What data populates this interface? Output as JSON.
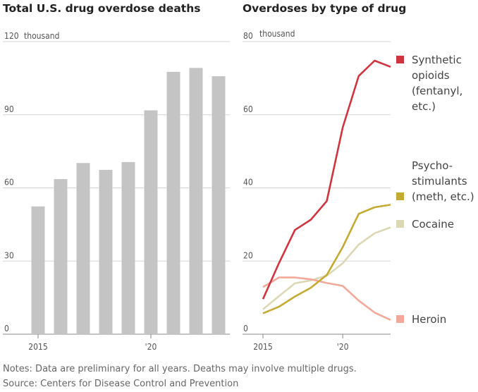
{
  "chart_data": [
    {
      "type": "bar",
      "title": "Total U.S. drug overdose deaths",
      "unit_label": "thousand",
      "x": [
        2015,
        2016,
        2017,
        2018,
        2019,
        2020,
        2021,
        2022,
        2023
      ],
      "values": [
        52.4,
        63.6,
        70.2,
        67.4,
        70.6,
        91.8,
        107.6,
        109.2,
        105.8
      ],
      "ylim": [
        0,
        120
      ],
      "y_ticks": [
        "120",
        "90",
        "60",
        "30",
        "0"
      ],
      "x_ticks": [
        "2015",
        "'20"
      ],
      "colors": {
        "bar": "#c4c4c4"
      },
      "grid": true
    },
    {
      "type": "line",
      "title": "Overdoses by type of drug",
      "unit_label": "thousand",
      "x": [
        2015,
        2016,
        2017,
        2018,
        2019,
        2020,
        2021,
        2022,
        2023
      ],
      "ylim": [
        0,
        80
      ],
      "y_ticks": [
        "80",
        "60",
        "40",
        "20",
        "0"
      ],
      "x_ticks": [
        "2015",
        "'20"
      ],
      "grid": true,
      "series": [
        {
          "name": "Synthetic opioids (fentanyl, etc.)",
          "legend_lines": [
            "Synthetic",
            "opioids",
            "(fentanyl,",
            "etc.)"
          ],
          "color": "#d0343f",
          "values": [
            9.6,
            19.4,
            28.5,
            31.3,
            36.4,
            56.5,
            70.6,
            74.8,
            73.1
          ]
        },
        {
          "name": "Psychostimulants (meth, etc.)",
          "legend_lines": [
            "Psycho-",
            "stimulants",
            "(meth, etc.)"
          ],
          "color": "#c4aa33",
          "values": [
            5.7,
            7.5,
            10.3,
            12.7,
            16.2,
            23.8,
            32.9,
            34.7,
            35.4
          ]
        },
        {
          "name": "Cocaine",
          "legend_lines": [
            "Cocaine"
          ],
          "color": "#dcd8b4",
          "values": [
            6.8,
            10.4,
            13.9,
            14.7,
            16.0,
            19.4,
            24.5,
            27.6,
            29.2
          ]
        },
        {
          "name": "Heroin",
          "legend_lines": [
            "Heroin"
          ],
          "color": "#f2a99a",
          "values": [
            12.9,
            15.5,
            15.5,
            15.0,
            14.0,
            13.2,
            9.2,
            5.9,
            3.9
          ]
        }
      ]
    }
  ],
  "notes": {
    "line1": "Notes: Data are preliminary for all years. Deaths may involve multiple drugs.",
    "line2": "Source: Centers for Disease Control and Prevention"
  }
}
